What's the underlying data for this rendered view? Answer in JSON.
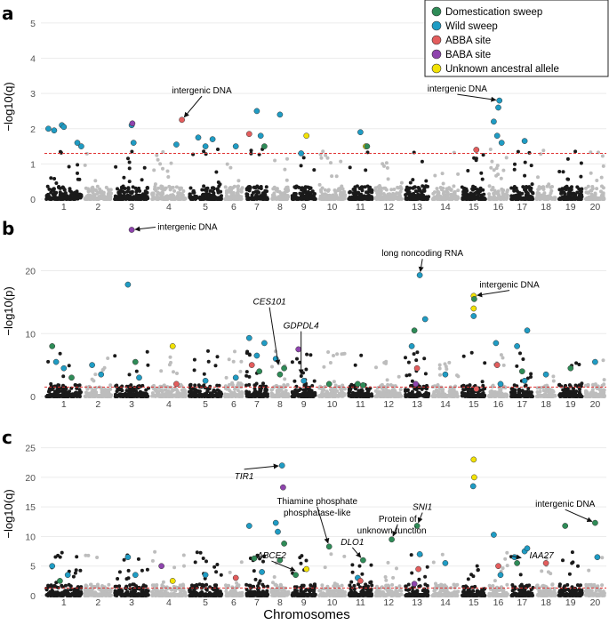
{
  "colors": {
    "domestication": "#2e8b57",
    "wild": "#1f9cc4",
    "abba": "#e35d5d",
    "baba": "#8e44ad",
    "unknown": "#f2e205",
    "chr_dark": "#1a1a1a",
    "chr_light": "#bdbdbd",
    "threshold": "#e03030"
  },
  "legend": {
    "items": [
      {
        "key": "domestication",
        "label": "Domestication sweep"
      },
      {
        "key": "wild",
        "label": "Wild sweep"
      },
      {
        "key": "abba",
        "label": "ABBA site"
      },
      {
        "key": "baba",
        "label": "BABA site"
      },
      {
        "key": "unknown",
        "label": "Unknown ancestral allele"
      }
    ]
  },
  "x_axis_title": "Chromosomes",
  "chart_data": [
    {
      "panel": "a",
      "type": "scatter",
      "ylabel": "−log10(q)",
      "ylim": [
        0,
        5.3
      ],
      "yticks": [
        0,
        1,
        2,
        3,
        4,
        5
      ],
      "threshold": 1.3,
      "chromosomes": [
        "1",
        "2",
        "3",
        "4",
        "5",
        "6",
        "7",
        "8",
        "9",
        "10",
        "11",
        "12",
        "13",
        "14",
        "15",
        "16",
        "17",
        "18",
        "19",
        "20"
      ],
      "highlights": [
        {
          "chr": 1,
          "pos": 0.1,
          "y": 2.0,
          "cat": "wild"
        },
        {
          "chr": 1,
          "pos": 0.25,
          "y": 1.95,
          "cat": "wild"
        },
        {
          "chr": 1,
          "pos": 0.45,
          "y": 2.1,
          "cat": "wild"
        },
        {
          "chr": 1,
          "pos": 0.5,
          "y": 2.05,
          "cat": "wild"
        },
        {
          "chr": 1,
          "pos": 0.85,
          "y": 1.6,
          "cat": "wild"
        },
        {
          "chr": 1,
          "pos": 0.95,
          "y": 1.5,
          "cat": "wild"
        },
        {
          "chr": 3,
          "pos": 0.5,
          "y": 2.1,
          "cat": "wild"
        },
        {
          "chr": 3,
          "pos": 0.52,
          "y": 2.15,
          "cat": "baba"
        },
        {
          "chr": 3,
          "pos": 0.55,
          "y": 1.6,
          "cat": "wild"
        },
        {
          "chr": 4,
          "pos": 0.7,
          "y": 1.55,
          "cat": "wild"
        },
        {
          "chr": 4,
          "pos": 0.85,
          "y": 2.25,
          "cat": "abba"
        },
        {
          "chr": 5,
          "pos": 0.3,
          "y": 1.75,
          "cat": "wild"
        },
        {
          "chr": 5,
          "pos": 0.5,
          "y": 1.5,
          "cat": "wild"
        },
        {
          "chr": 5,
          "pos": 0.7,
          "y": 1.7,
          "cat": "wild"
        },
        {
          "chr": 6,
          "pos": 0.6,
          "y": 1.5,
          "cat": "wild"
        },
        {
          "chr": 7,
          "pos": 0.2,
          "y": 1.85,
          "cat": "abba"
        },
        {
          "chr": 7,
          "pos": 0.5,
          "y": 2.5,
          "cat": "wild"
        },
        {
          "chr": 7,
          "pos": 0.65,
          "y": 1.8,
          "cat": "wild"
        },
        {
          "chr": 7,
          "pos": 0.8,
          "y": 1.5,
          "cat": "domestication"
        },
        {
          "chr": 8,
          "pos": 0.5,
          "y": 2.4,
          "cat": "wild"
        },
        {
          "chr": 9,
          "pos": 0.4,
          "y": 1.3,
          "cat": "wild"
        },
        {
          "chr": 9,
          "pos": 0.6,
          "y": 1.8,
          "cat": "unknown"
        },
        {
          "chr": 11,
          "pos": 0.5,
          "y": 1.9,
          "cat": "wild"
        },
        {
          "chr": 11,
          "pos": 0.7,
          "y": 1.5,
          "cat": "unknown"
        },
        {
          "chr": 11,
          "pos": 0.75,
          "y": 1.5,
          "cat": "domestication"
        },
        {
          "chr": 15,
          "pos": 0.6,
          "y": 1.4,
          "cat": "abba"
        },
        {
          "chr": 16,
          "pos": 0.3,
          "y": 2.2,
          "cat": "wild"
        },
        {
          "chr": 16,
          "pos": 0.5,
          "y": 2.6,
          "cat": "wild"
        },
        {
          "chr": 16,
          "pos": 0.55,
          "y": 2.8,
          "cat": "wild"
        },
        {
          "chr": 16,
          "pos": 0.45,
          "y": 1.8,
          "cat": "wild"
        },
        {
          "chr": 16,
          "pos": 0.65,
          "y": 1.6,
          "cat": "wild"
        },
        {
          "chr": 17,
          "pos": 0.6,
          "y": 1.65,
          "cat": "wild"
        }
      ],
      "annotations": [
        {
          "text": "intergenic DNA",
          "italic": false,
          "target_chr": 4,
          "target_pos": 0.85,
          "target_y": 2.25,
          "text_chr": 5.4,
          "text_y": 3.0
        },
        {
          "text": "intergenic DNA",
          "italic": false,
          "target_chr": 16,
          "target_pos": 0.55,
          "target_y": 2.8,
          "text_chr": 14.9,
          "text_y": 3.05
        }
      ]
    },
    {
      "panel": "b",
      "type": "scatter",
      "ylabel": "−log10(p)",
      "ylim": [
        0,
        27
      ],
      "yticks": [
        0,
        10,
        20
      ],
      "threshold": 1.5,
      "chromosomes": [
        "1",
        "2",
        "3",
        "4",
        "5",
        "6",
        "7",
        "8",
        "9",
        "10",
        "11",
        "12",
        "13",
        "14",
        "15",
        "16",
        "17",
        "18",
        "19",
        "20"
      ],
      "highlights": [
        {
          "chr": 1,
          "pos": 0.2,
          "y": 8.0,
          "cat": "domestication"
        },
        {
          "chr": 1,
          "pos": 0.3,
          "y": 5.5,
          "cat": "wild"
        },
        {
          "chr": 1,
          "pos": 0.5,
          "y": 4.5,
          "cat": "wild"
        },
        {
          "chr": 1,
          "pos": 0.7,
          "y": 3.0,
          "cat": "domestication"
        },
        {
          "chr": 2,
          "pos": 0.3,
          "y": 5.0,
          "cat": "wild"
        },
        {
          "chr": 2,
          "pos": 0.6,
          "y": 3.5,
          "cat": "wild"
        },
        {
          "chr": 3,
          "pos": 0.4,
          "y": 17.8,
          "cat": "wild"
        },
        {
          "chr": 3,
          "pos": 0.5,
          "y": 26.5,
          "cat": "baba"
        },
        {
          "chr": 3,
          "pos": 0.6,
          "y": 5.5,
          "cat": "domestication"
        },
        {
          "chr": 3,
          "pos": 0.7,
          "y": 3.0,
          "cat": "wild"
        },
        {
          "chr": 4,
          "pos": 0.6,
          "y": 8.0,
          "cat": "unknown"
        },
        {
          "chr": 4,
          "pos": 0.7,
          "y": 2.0,
          "cat": "abba"
        },
        {
          "chr": 5,
          "pos": 0.5,
          "y": 2.5,
          "cat": "wild"
        },
        {
          "chr": 6,
          "pos": 0.6,
          "y": 3.0,
          "cat": "wild"
        },
        {
          "chr": 7,
          "pos": 0.2,
          "y": 9.3,
          "cat": "wild"
        },
        {
          "chr": 7,
          "pos": 0.3,
          "y": 5.0,
          "cat": "abba"
        },
        {
          "chr": 7,
          "pos": 0.5,
          "y": 6.5,
          "cat": "wild"
        },
        {
          "chr": 7,
          "pos": 0.6,
          "y": 4.0,
          "cat": "domestication"
        },
        {
          "chr": 7,
          "pos": 0.8,
          "y": 8.5,
          "cat": "wild"
        },
        {
          "chr": 8,
          "pos": 0.3,
          "y": 6.0,
          "cat": "wild"
        },
        {
          "chr": 8,
          "pos": 0.5,
          "y": 3.5,
          "cat": "domestication"
        },
        {
          "chr": 8,
          "pos": 0.7,
          "y": 4.5,
          "cat": "domestication"
        },
        {
          "chr": 9,
          "pos": 0.3,
          "y": 7.5,
          "cat": "baba"
        },
        {
          "chr": 9,
          "pos": 0.5,
          "y": 2.5,
          "cat": "wild"
        },
        {
          "chr": 10,
          "pos": 0.4,
          "y": 2.0,
          "cat": "domestication"
        },
        {
          "chr": 11,
          "pos": 0.4,
          "y": 2.0,
          "cat": "domestication"
        },
        {
          "chr": 11,
          "pos": 0.6,
          "y": 1.8,
          "cat": "domestication"
        },
        {
          "chr": 13,
          "pos": 0.3,
          "y": 8.0,
          "cat": "wild"
        },
        {
          "chr": 13,
          "pos": 0.4,
          "y": 10.5,
          "cat": "domestication"
        },
        {
          "chr": 13,
          "pos": 0.6,
          "y": 19.3,
          "cat": "wild"
        },
        {
          "chr": 13,
          "pos": 0.8,
          "y": 12.3,
          "cat": "wild"
        },
        {
          "chr": 13,
          "pos": 0.5,
          "y": 4.5,
          "cat": "abba"
        },
        {
          "chr": 13,
          "pos": 0.45,
          "y": 2.0,
          "cat": "baba"
        },
        {
          "chr": 14,
          "pos": 0.5,
          "y": 3.5,
          "cat": "wild"
        },
        {
          "chr": 15,
          "pos": 0.5,
          "y": 16.0,
          "cat": "unknown"
        },
        {
          "chr": 15,
          "pos": 0.52,
          "y": 15.5,
          "cat": "domestication"
        },
        {
          "chr": 15,
          "pos": 0.5,
          "y": 14.0,
          "cat": "unknown"
        },
        {
          "chr": 15,
          "pos": 0.5,
          "y": 12.8,
          "cat": "wild"
        },
        {
          "chr": 15,
          "pos": 0.6,
          "y": 1.2,
          "cat": "abba"
        },
        {
          "chr": 16,
          "pos": 0.4,
          "y": 8.5,
          "cat": "wild"
        },
        {
          "chr": 16,
          "pos": 0.45,
          "y": 5.0,
          "cat": "abba"
        },
        {
          "chr": 16,
          "pos": 0.6,
          "y": 2.0,
          "cat": "wild"
        },
        {
          "chr": 17,
          "pos": 0.3,
          "y": 8.0,
          "cat": "wild"
        },
        {
          "chr": 17,
          "pos": 0.5,
          "y": 4.0,
          "cat": "domestication"
        },
        {
          "chr": 17,
          "pos": 0.7,
          "y": 10.5,
          "cat": "wild"
        },
        {
          "chr": 17,
          "pos": 0.6,
          "y": 2.5,
          "cat": "wild"
        },
        {
          "chr": 18,
          "pos": 0.5,
          "y": 3.5,
          "cat": "wild"
        },
        {
          "chr": 19,
          "pos": 0.5,
          "y": 4.5,
          "cat": "domestication"
        },
        {
          "chr": 20,
          "pos": 0.5,
          "y": 5.5,
          "cat": "wild"
        }
      ],
      "annotations": [
        {
          "text": "intergenic DNA",
          "italic": false,
          "target_chr": 3,
          "target_pos": 0.5,
          "target_y": 26.5,
          "text_chr": 5.0,
          "text_y": 26.5
        },
        {
          "text": "long noncoding RNA",
          "italic": false,
          "target_chr": 13,
          "target_pos": 0.6,
          "target_y": 19.3,
          "text_chr": 13.7,
          "text_y": 22.3
        },
        {
          "text": "intergenic DNA",
          "italic": false,
          "target_chr": 15,
          "target_pos": 0.5,
          "target_y": 16.0,
          "text_chr": 17.0,
          "text_y": 17.3
        },
        {
          "text": "CES101",
          "italic": true,
          "target_chr": 8,
          "target_pos": 0.45,
          "target_y": 4.5,
          "text_chr": 8.0,
          "text_y": 14.6
        },
        {
          "text": "GDPDL4",
          "italic": true,
          "target_chr": 9,
          "target_pos": 0.4,
          "target_y": 3.0,
          "text_chr": 9.4,
          "text_y": 10.8
        }
      ]
    },
    {
      "panel": "c",
      "type": "scatter",
      "ylabel": "−log10(q)",
      "ylim": [
        0,
        27.5
      ],
      "yticks": [
        0,
        5,
        10,
        15,
        20,
        25
      ],
      "threshold": 1.3,
      "chromosomes": [
        "1",
        "2",
        "3",
        "4",
        "5",
        "6",
        "7",
        "8",
        "9",
        "10",
        "11",
        "12",
        "13",
        "14",
        "15",
        "16",
        "17",
        "18",
        "19",
        "20"
      ],
      "highlights": [
        {
          "chr": 1,
          "pos": 0.2,
          "y": 5.0,
          "cat": "wild"
        },
        {
          "chr": 1,
          "pos": 0.4,
          "y": 2.5,
          "cat": "domestication"
        },
        {
          "chr": 1,
          "pos": 0.6,
          "y": 3.5,
          "cat": "wild"
        },
        {
          "chr": 3,
          "pos": 0.4,
          "y": 6.5,
          "cat": "wild"
        },
        {
          "chr": 3,
          "pos": 0.6,
          "y": 3.5,
          "cat": "wild"
        },
        {
          "chr": 4,
          "pos": 0.3,
          "y": 5.0,
          "cat": "baba"
        },
        {
          "chr": 4,
          "pos": 0.6,
          "y": 2.5,
          "cat": "unknown"
        },
        {
          "chr": 5,
          "pos": 0.5,
          "y": 3.5,
          "cat": "wild"
        },
        {
          "chr": 6,
          "pos": 0.6,
          "y": 3.0,
          "cat": "abba"
        },
        {
          "chr": 7,
          "pos": 0.2,
          "y": 11.8,
          "cat": "wild"
        },
        {
          "chr": 7,
          "pos": 0.4,
          "y": 6.3,
          "cat": "domestication"
        },
        {
          "chr": 7,
          "pos": 0.7,
          "y": 4.0,
          "cat": "wild"
        },
        {
          "chr": 8,
          "pos": 0.3,
          "y": 12.3,
          "cat": "wild"
        },
        {
          "chr": 8,
          "pos": 0.4,
          "y": 10.8,
          "cat": "wild"
        },
        {
          "chr": 8,
          "pos": 0.5,
          "y": 6.0,
          "cat": "domestication"
        },
        {
          "chr": 8,
          "pos": 0.6,
          "y": 22.0,
          "cat": "wild"
        },
        {
          "chr": 8,
          "pos": 0.65,
          "y": 18.3,
          "cat": "baba"
        },
        {
          "chr": 8,
          "pos": 0.7,
          "y": 8.8,
          "cat": "domestication"
        },
        {
          "chr": 9,
          "pos": 0.2,
          "y": 3.5,
          "cat": "domestication"
        },
        {
          "chr": 9,
          "pos": 0.6,
          "y": 4.5,
          "cat": "unknown"
        },
        {
          "chr": 10,
          "pos": 0.4,
          "y": 8.3,
          "cat": "domestication"
        },
        {
          "chr": 11,
          "pos": 0.6,
          "y": 6.0,
          "cat": "domestication"
        },
        {
          "chr": 11,
          "pos": 0.4,
          "y": 3.0,
          "cat": "wild"
        },
        {
          "chr": 11,
          "pos": 0.5,
          "y": 2.5,
          "cat": "abba"
        },
        {
          "chr": 12,
          "pos": 0.6,
          "y": 9.5,
          "cat": "domestication"
        },
        {
          "chr": 13,
          "pos": 0.5,
          "y": 11.8,
          "cat": "domestication"
        },
        {
          "chr": 13,
          "pos": 0.6,
          "y": 7.0,
          "cat": "wild"
        },
        {
          "chr": 13,
          "pos": 0.55,
          "y": 4.5,
          "cat": "abba"
        },
        {
          "chr": 13,
          "pos": 0.4,
          "y": 2.0,
          "cat": "baba"
        },
        {
          "chr": 14,
          "pos": 0.5,
          "y": 5.5,
          "cat": "wild"
        },
        {
          "chr": 15,
          "pos": 0.5,
          "y": 23.0,
          "cat": "unknown"
        },
        {
          "chr": 15,
          "pos": 0.52,
          "y": 20.0,
          "cat": "unknown"
        },
        {
          "chr": 15,
          "pos": 0.48,
          "y": 18.5,
          "cat": "wild"
        },
        {
          "chr": 16,
          "pos": 0.3,
          "y": 10.3,
          "cat": "wild"
        },
        {
          "chr": 16,
          "pos": 0.5,
          "y": 5.0,
          "cat": "abba"
        },
        {
          "chr": 16,
          "pos": 0.6,
          "y": 3.5,
          "cat": "wild"
        },
        {
          "chr": 17,
          "pos": 0.2,
          "y": 6.5,
          "cat": "wild"
        },
        {
          "chr": 17,
          "pos": 0.3,
          "y": 5.5,
          "cat": "domestication"
        },
        {
          "chr": 17,
          "pos": 0.6,
          "y": 7.5,
          "cat": "wild"
        },
        {
          "chr": 17,
          "pos": 0.7,
          "y": 8.0,
          "cat": "wild"
        },
        {
          "chr": 18,
          "pos": 0.5,
          "y": 5.5,
          "cat": "abba"
        },
        {
          "chr": 19,
          "pos": 0.3,
          "y": 11.8,
          "cat": "domestication"
        },
        {
          "chr": 20,
          "pos": 0.5,
          "y": 12.3,
          "cat": "domestication"
        },
        {
          "chr": 20,
          "pos": 0.6,
          "y": 6.5,
          "cat": "wild"
        }
      ],
      "annotations": [
        {
          "text": "TIR1",
          "italic": true,
          "target_chr": 8,
          "target_pos": 0.6,
          "target_y": 22.0,
          "text_chr": 7.0,
          "text_y": 19.7
        },
        {
          "text": "Thiamine phosphate",
          "italic": false,
          "target_chr": 10,
          "target_pos": 0.4,
          "target_y": 8.3,
          "text_chr": 10.0,
          "text_y": 15.5
        },
        {
          "text": "phosphatase-like",
          "italic": false,
          "target_chr": null,
          "target_pos": null,
          "target_y": null,
          "text_chr": 10.0,
          "text_y": 13.5
        },
        {
          "text": "Protein of",
          "italic": false,
          "target_chr": 12,
          "target_pos": 0.6,
          "target_y": 9.5,
          "text_chr": 12.8,
          "text_y": 12.5
        },
        {
          "text": "unknown function",
          "italic": false,
          "target_chr": null,
          "target_pos": null,
          "target_y": null,
          "text_chr": 12.6,
          "text_y": 10.5
        },
        {
          "text": "SNI1",
          "italic": true,
          "target_chr": 13,
          "target_pos": 0.5,
          "target_y": 11.8,
          "text_chr": 13.7,
          "text_y": 14.5
        },
        {
          "text": "DLO1",
          "italic": true,
          "target_chr": 11,
          "target_pos": 0.6,
          "target_y": 6.0,
          "text_chr": 11.2,
          "text_y": 8.6
        },
        {
          "text": "ABCE2",
          "italic": true,
          "target_chr": 9,
          "target_pos": 0.3,
          "target_y": 4.0,
          "text_chr": 8.1,
          "text_y": 6.3
        },
        {
          "text": "IAA27",
          "italic": true,
          "target_chr": 17,
          "target_pos": 0.6,
          "target_y": 6.3,
          "text_chr": 18.3,
          "text_y": 6.3
        },
        {
          "text": "intergenic DNA",
          "italic": false,
          "target_chr": 20,
          "target_pos": 0.5,
          "target_y": 12.3,
          "text_chr": 19.3,
          "text_y": 15.0
        }
      ]
    }
  ]
}
